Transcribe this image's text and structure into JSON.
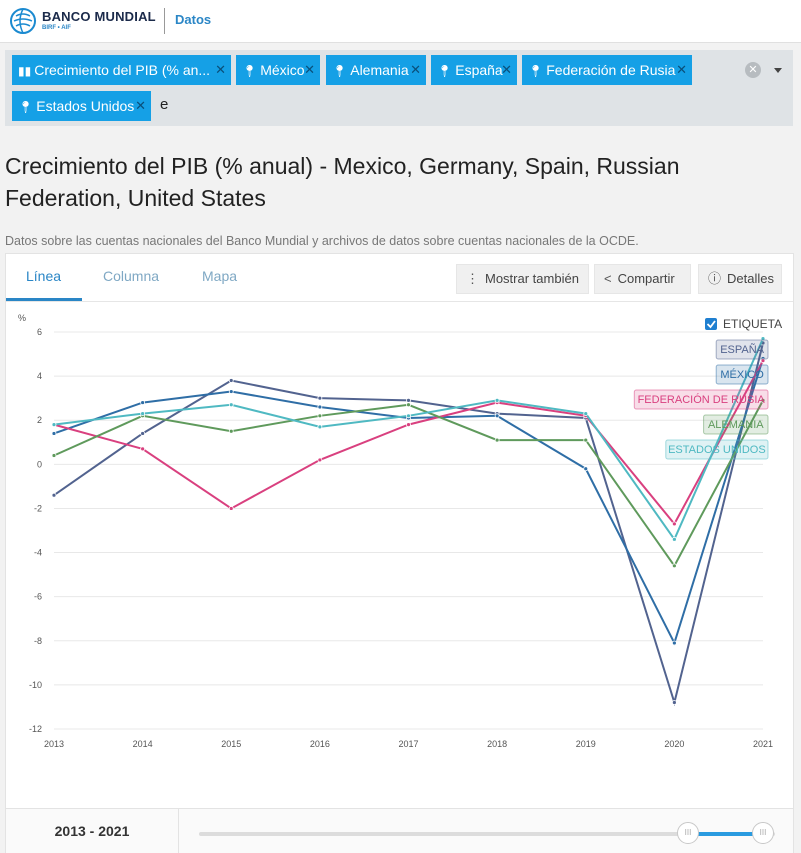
{
  "header": {
    "brand": "BANCO MUNDIAL",
    "brand_sub": "BIRF • AIF",
    "section": "Datos"
  },
  "filters": {
    "tags": [
      {
        "label": "Crecimiento del PIB (% an...",
        "icon": "bar-chart-icon"
      },
      {
        "label": "México",
        "icon": "location-pin-icon"
      },
      {
        "label": "Alemania",
        "icon": "location-pin-icon"
      },
      {
        "label": "España",
        "icon": "location-pin-icon"
      },
      {
        "label": "Federación de Rusia",
        "icon": "location-pin-icon"
      },
      {
        "label": "Estados Unidos",
        "icon": "location-pin-icon"
      }
    ],
    "typed_value": "e"
  },
  "page": {
    "title": "Crecimiento del PIB (% anual) - Mexico, Germany, Spain, Russian Federation, United States",
    "source": "Datos sobre las cuentas nacionales del Banco Mundial y archivos de datos sobre cuentas nacionales de la OCDE."
  },
  "tabs": [
    {
      "label": "Línea",
      "active": true
    },
    {
      "label": "Columna",
      "active": false
    },
    {
      "label": "Mapa",
      "active": false
    }
  ],
  "actions": {
    "more": "Mostrar también",
    "share": "Compartir",
    "details": "Detalles"
  },
  "label_toggle": "ETIQUETA",
  "colors": {
    "accent": "#2a86c6",
    "tag": "#15a0e6"
  },
  "chart_data": {
    "type": "line",
    "ylabel": "%",
    "ylim": [
      -12,
      6
    ],
    "yticks": [
      6,
      4,
      2,
      0,
      -2,
      -4,
      -6,
      -8,
      -10,
      -12
    ],
    "x": [
      2013,
      2014,
      2015,
      2016,
      2017,
      2018,
      2019,
      2020,
      2021
    ],
    "series": [
      {
        "name": "ESPAÑA",
        "color": "#52638f",
        "values": [
          -1.4,
          1.4,
          3.8,
          3.0,
          2.9,
          2.3,
          2.1,
          -10.8,
          5.5
        ]
      },
      {
        "name": "MÉXICO",
        "color": "#2f6ea6",
        "values": [
          1.4,
          2.8,
          3.3,
          2.6,
          2.1,
          2.2,
          -0.2,
          -8.1,
          4.8
        ]
      },
      {
        "name": "FEDERACIÓN DE RUSIA",
        "color": "#d9407f",
        "values": [
          1.8,
          0.7,
          -2.0,
          0.2,
          1.8,
          2.8,
          2.2,
          -2.7,
          4.7
        ]
      },
      {
        "name": "ALEMANIA",
        "color": "#5f9a5c",
        "values": [
          0.4,
          2.2,
          1.5,
          2.2,
          2.7,
          1.1,
          1.1,
          -4.6,
          2.9
        ]
      },
      {
        "name": "ESTADOS UNIDOS",
        "color": "#4fb9c2",
        "values": [
          1.8,
          2.3,
          2.7,
          1.7,
          2.2,
          2.9,
          2.3,
          -3.4,
          5.7
        ]
      }
    ],
    "legend_position": "right",
    "grid": true
  },
  "range": {
    "label": "2013 - 2021"
  }
}
